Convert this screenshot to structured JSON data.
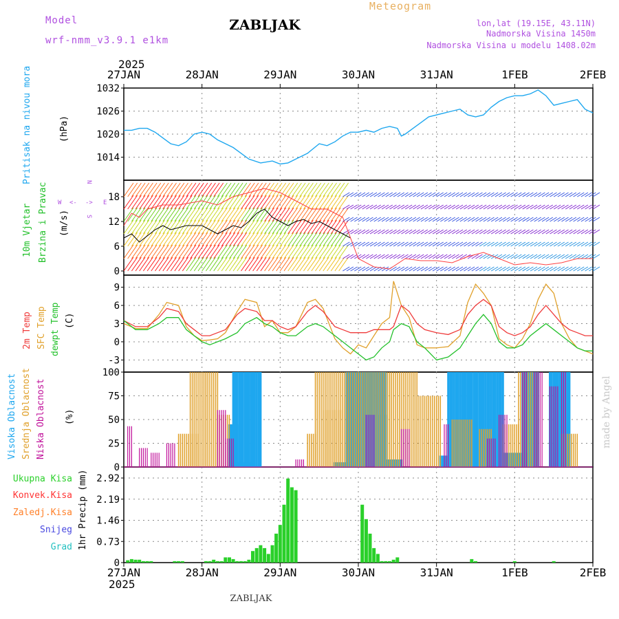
{
  "header": {
    "model_label": "Model",
    "model_name": "wrf-nmm_v3.9.1  e1km",
    "station": "ZABLJAK",
    "meteogram_label": "Meteogram",
    "coords": "lon,lat (19.15E, 43.11N)",
    "elevation": "Nadmorska Visina 1450m",
    "model_elevation": "Nadmorska Visina u modelu 1408.02m",
    "year_top": "2025",
    "year_bottom": "2025",
    "footer": "ZABLJAK",
    "credit": "made by Angel"
  },
  "colors": {
    "pressure": "#1ea7ef",
    "temp2m": "#ef3a3a",
    "sfc": "#e0a02a",
    "dewpt": "#22c02a",
    "high": "#1ea7ef",
    "mid": "#e0a02a",
    "low": "#c0109a",
    "total": "#2ad02a",
    "konv": "#ff3333",
    "zaledj": "#ff7f27",
    "snow": "#4848e0",
    "grad": "#22c0c0",
    "label_purple": "#b050e0",
    "label_orange": "#e8b060"
  },
  "chart_data": [
    {
      "type": "line",
      "panel": "pressure",
      "x_ticks": [
        "27JAN",
        "28JAN",
        "29JAN",
        "30JAN",
        "31JAN",
        "1FEB",
        "2FEB"
      ],
      "ylabel": "(hPa)",
      "series_label": "Pritisak na nivou mora",
      "ylim": [
        1008,
        1032
      ],
      "yticks": [
        1014,
        1020,
        1026,
        1032
      ],
      "grid": true,
      "series": [
        {
          "name": "Pritisak na nivou mora",
          "x": [
            0,
            0.1,
            0.2,
            0.3,
            0.4,
            0.5,
            0.6,
            0.7,
            0.8,
            0.9,
            1.0,
            1.1,
            1.2,
            1.4,
            1.6,
            1.75,
            1.9,
            2.0,
            2.1,
            2.2,
            2.35,
            2.5,
            2.6,
            2.7,
            2.8,
            2.9,
            3.0,
            3.1,
            3.2,
            3.3,
            3.4,
            3.5,
            3.55,
            3.6,
            3.7,
            3.8,
            3.9,
            4.0,
            4.1,
            4.2,
            4.3,
            4.4,
            4.5,
            4.6,
            4.7,
            4.8,
            4.9,
            5.0,
            5.1,
            5.2,
            5.3,
            5.4,
            5.5,
            5.6,
            5.7,
            5.8,
            5.9,
            6.0
          ],
          "values": [
            1021,
            1021,
            1021.5,
            1021.5,
            1020.5,
            1019,
            1017.5,
            1017,
            1018,
            1020,
            1020.5,
            1020,
            1018.5,
            1016.5,
            1013.5,
            1012.5,
            1013,
            1012.2,
            1012.5,
            1013.5,
            1015,
            1017.5,
            1017,
            1018,
            1019.5,
            1020.5,
            1020.5,
            1021,
            1020.5,
            1021.5,
            1022,
            1021.5,
            1019.5,
            1020,
            1021.5,
            1023,
            1024.5,
            1025,
            1025.5,
            1026,
            1026.5,
            1025,
            1024.5,
            1025,
            1027,
            1028.5,
            1029.5,
            1030,
            1030,
            1030.5,
            1031.5,
            1030,
            1027.5,
            1028,
            1028.5,
            1029,
            1026.5,
            1025.5
          ]
        }
      ]
    },
    {
      "type": "line",
      "panel": "wind",
      "series_label_1": "10m Vjetar",
      "series_label_2": "Brzina i Pravac",
      "ylabel": "(m/s)",
      "ylim": [
        -1,
        22
      ],
      "yticks": [
        0,
        6,
        12,
        18
      ],
      "direction_labels": {
        "west": "W",
        "east": "E",
        "north": "N",
        "south": "S",
        "arrow_left": "<-",
        "arrow_right": "->"
      },
      "series": [
        {
          "name": "wind speed",
          "x": [
            0,
            0.1,
            0.2,
            0.3,
            0.4,
            0.5,
            0.6,
            0.8,
            1.0,
            1.2,
            1.3,
            1.4,
            1.5,
            1.6,
            1.7,
            1.8,
            1.9,
            2.0,
            2.1,
            2.2,
            2.3,
            2.4,
            2.5,
            2.6,
            2.7,
            2.8,
            2.9
          ],
          "values": [
            8,
            9,
            7,
            8.5,
            10,
            11,
            10,
            11,
            11,
            9,
            10,
            11,
            10.5,
            12,
            14,
            15,
            13,
            12,
            11,
            12,
            12.5,
            11.5,
            12,
            11,
            10,
            9,
            8
          ]
        },
        {
          "name": "gusts",
          "x": [
            0,
            0.1,
            0.2,
            0.3,
            0.5,
            0.7,
            1.0,
            1.2,
            1.4,
            1.6,
            1.8,
            2.0,
            2.2,
            2.4,
            2.6,
            2.8,
            3.0,
            3.2,
            3.4,
            3.6,
            3.8,
            4.0,
            4.2,
            4.4,
            4.6,
            4.8,
            5.0,
            5.2,
            5.4,
            5.6,
            5.8,
            6.0
          ],
          "values": [
            11,
            14,
            13,
            15,
            16,
            16,
            17,
            16,
            18,
            19,
            20,
            19,
            17,
            15,
            15,
            13,
            3,
            1,
            0.5,
            3,
            2.5,
            2.5,
            2,
            3.5,
            4.5,
            3,
            1.5,
            2,
            1.5,
            2,
            3,
            3
          ]
        }
      ]
    },
    {
      "type": "line",
      "panel": "temperature",
      "series_label_1": "2m Temp",
      "series_label_2": "SFC Temp",
      "series_label_3": "dewpt Temp",
      "ylabel": "(C)",
      "ylim": [
        -5,
        11
      ],
      "yticks": [
        -3,
        0,
        3,
        6,
        9
      ],
      "grid": true,
      "x": [
        0,
        0.15,
        0.3,
        0.45,
        0.55,
        0.7,
        0.8,
        0.9,
        1.0,
        1.1,
        1.2,
        1.3,
        1.45,
        1.55,
        1.7,
        1.8,
        1.9,
        2.0,
        2.1,
        2.2,
        2.35,
        2.45,
        2.55,
        2.7,
        2.8,
        2.9,
        3.0,
        3.1,
        3.2,
        3.3,
        3.4,
        3.45,
        3.55,
        3.65,
        3.75,
        3.85,
        4.0,
        4.15,
        4.3,
        4.4,
        4.5,
        4.6,
        4.7,
        4.8,
        4.9,
        5.0,
        5.1,
        5.2,
        5.3,
        5.4,
        5.5,
        5.6,
        5.7,
        5.8,
        5.9,
        6.0
      ],
      "series": [
        {
          "name": "2m Temp",
          "values": [
            3.5,
            2.5,
            2.5,
            4,
            5.5,
            5,
            3,
            2,
            1,
            1,
            1.5,
            2,
            4.5,
            5.5,
            5,
            3.5,
            3.5,
            2.5,
            2,
            2.5,
            5,
            6,
            5,
            2.5,
            2,
            1.5,
            1.5,
            1.5,
            2,
            2,
            2,
            2.5,
            6,
            5,
            3,
            2,
            1.5,
            1.2,
            2,
            4.5,
            6,
            7,
            6,
            2.5,
            1.5,
            1,
            1.5,
            2.5,
            4.5,
            6,
            4.5,
            3,
            2,
            1.5,
            1,
            1
          ]
        },
        {
          "name": "SFC Temp",
          "values": [
            3,
            2.2,
            2.2,
            4.5,
            6.5,
            6,
            2.5,
            1,
            0.2,
            0.3,
            0.5,
            1.5,
            5,
            7,
            6.5,
            2.5,
            3.5,
            1.5,
            1.5,
            2.5,
            6.5,
            7,
            5.5,
            0.5,
            -1,
            -2,
            -0.5,
            -1,
            1,
            3,
            4,
            10,
            6,
            4,
            -0.5,
            -1,
            -1,
            -0.8,
            1,
            6.5,
            9.5,
            8,
            6,
            0.5,
            -0.5,
            -1,
            0.5,
            3,
            7,
            9.5,
            8,
            3,
            0.5,
            -1,
            -1.5,
            -2
          ]
        },
        {
          "name": "dewpt Temp",
          "values": [
            3.5,
            2,
            2,
            3,
            4,
            4,
            2,
            1,
            0,
            -0.5,
            0,
            0.5,
            1.5,
            3,
            4,
            3,
            2.5,
            1.5,
            1,
            1,
            2.5,
            3,
            2.5,
            1,
            0,
            -1,
            -2,
            -3,
            -2.5,
            -1,
            0,
            2,
            3,
            2.5,
            0,
            -1,
            -3,
            -2.5,
            -1,
            1,
            3,
            4.5,
            3,
            0,
            -1,
            -1,
            -0.5,
            1,
            2,
            3,
            2,
            1,
            0,
            -1,
            -1.5,
            -1.5
          ]
        }
      ]
    },
    {
      "type": "bar",
      "panel": "clouds",
      "series_label_1": "Visoka Oblacnost",
      "series_label_2": "Srednja Oblacnost",
      "series_label_3": "Niska Oblacnost",
      "ylabel": "(%)",
      "ylim": [
        0,
        100
      ],
      "yticks": [
        0,
        25,
        50,
        75,
        100
      ],
      "grid": true,
      "series": [
        {
          "name": "Visoka Oblacnost",
          "intervals": [
            [
              1.35,
              1.45,
              45
            ],
            [
              1.4,
              1.75,
              100
            ],
            [
              1.35,
              1.6,
              5
            ],
            [
              2.7,
              2.95,
              5
            ],
            [
              2.85,
              3.35,
              100
            ],
            [
              3.1,
              3.35,
              55
            ],
            [
              3.35,
              3.55,
              8
            ],
            [
              4.05,
              4.15,
              12
            ],
            [
              4.15,
              4.85,
              100
            ],
            [
              4.85,
              5.15,
              15
            ],
            [
              5.45,
              5.7,
              100
            ],
            [
              5.1,
              5.3,
              100
            ]
          ]
        },
        {
          "name": "Srednja Oblacnost",
          "intervals": [
            [
              0.7,
              0.95,
              35
            ],
            [
              0.85,
              1.05,
              100
            ],
            [
              1.05,
              1.2,
              100
            ],
            [
              1.2,
              1.35,
              55
            ],
            [
              2.35,
              2.45,
              35
            ],
            [
              2.45,
              3.0,
              100
            ],
            [
              2.55,
              2.8,
              60
            ],
            [
              3.0,
              3.4,
              100
            ],
            [
              3.4,
              3.75,
              100
            ],
            [
              3.75,
              4.05,
              75
            ],
            [
              4.2,
              4.45,
              50
            ],
            [
              4.55,
              4.7,
              40
            ],
            [
              4.85,
              5.05,
              45
            ],
            [
              5.05,
              5.3,
              100
            ],
            [
              5.6,
              5.8,
              35
            ]
          ]
        },
        {
          "name": "Niska Oblacnost",
          "intervals": [
            [
              0.05,
              0.1,
              43
            ],
            [
              0.2,
              0.3,
              20
            ],
            [
              0.35,
              0.45,
              15
            ],
            [
              0.55,
              0.65,
              25
            ],
            [
              1.2,
              1.3,
              60
            ],
            [
              1.3,
              1.4,
              30
            ],
            [
              2.2,
              2.3,
              8
            ],
            [
              3.1,
              3.2,
              55
            ],
            [
              3.55,
              3.65,
              40
            ],
            [
              4.1,
              4.15,
              45
            ],
            [
              4.65,
              4.75,
              30
            ],
            [
              4.8,
              4.9,
              55
            ],
            [
              5.1,
              5.15,
              100
            ],
            [
              5.25,
              5.35,
              100
            ],
            [
              5.45,
              5.55,
              85
            ],
            [
              5.6,
              5.65,
              100
            ]
          ]
        }
      ]
    },
    {
      "type": "bar",
      "panel": "precipitation",
      "legend": [
        "Ukupna Kisa",
        "Konvek.Kisa",
        "Zaledj.Kisa",
        "Snijeg",
        "Grad"
      ],
      "ylabel": "1hr Precip (mm)",
      "ylim": [
        0,
        3.3
      ],
      "yticks": [
        0,
        0.73,
        1.46,
        2.19,
        2.92
      ],
      "grid": true,
      "series": [
        {
          "name": "Ukupna Kisa",
          "x": [
            0.05,
            0.1,
            0.15,
            0.2,
            0.25,
            0.3,
            0.35,
            0.65,
            0.7,
            0.75,
            1.05,
            1.1,
            1.15,
            1.2,
            1.25,
            1.3,
            1.35,
            1.4,
            1.45,
            1.5,
            1.55,
            1.6,
            1.65,
            1.7,
            1.75,
            1.8,
            1.85,
            1.9,
            1.95,
            2.0,
            2.05,
            2.1,
            2.15,
            2.2,
            3.05,
            3.1,
            3.15,
            3.2,
            3.25,
            3.3,
            3.35,
            3.4,
            3.45,
            3.5,
            4.45,
            4.5,
            5.0,
            5.5
          ],
          "values": [
            0.08,
            0.12,
            0.1,
            0.1,
            0.05,
            0.05,
            0.05,
            0.05,
            0.05,
            0.05,
            0.05,
            0.05,
            0.1,
            0.05,
            0.05,
            0.18,
            0.18,
            0.12,
            0.05,
            0.05,
            0.05,
            0.1,
            0.4,
            0.5,
            0.6,
            0.5,
            0.3,
            0.6,
            1.0,
            1.3,
            2.0,
            2.9,
            2.6,
            2.5,
            2.0,
            1.5,
            1.0,
            0.5,
            0.3,
            0.05,
            0.05,
            0.05,
            0.1,
            0.18,
            0.12,
            0.05,
            0.05,
            0.05
          ]
        }
      ]
    }
  ]
}
